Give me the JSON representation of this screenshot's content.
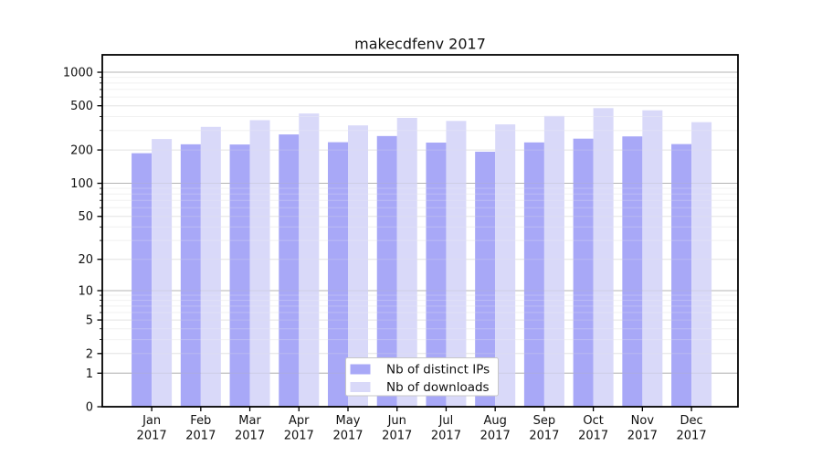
{
  "title": "makecdfenv 2017",
  "chart_data": {
    "type": "bar",
    "title": "makecdfenv 2017",
    "categories": [
      "Jan 2017",
      "Feb 2017",
      "Mar 2017",
      "Apr 2017",
      "May 2017",
      "Jun 2017",
      "Jul 2017",
      "Aug 2017",
      "Sep 2017",
      "Oct 2017",
      "Nov 2017",
      "Dec 2017"
    ],
    "series": [
      {
        "name": "Nb of distinct IPs",
        "color": "#a8a8f7",
        "values": [
          187,
          225,
          224,
          276,
          235,
          267,
          233,
          193,
          234,
          253,
          265,
          226
        ]
      },
      {
        "name": "Nb of downloads",
        "color": "#d9d9f9",
        "values": [
          251,
          323,
          371,
          426,
          333,
          389,
          365,
          340,
          405,
          476,
          455,
          356
        ]
      }
    ],
    "y_scale": "symlog",
    "y_ticks": [
      0,
      1,
      2,
      5,
      10,
      20,
      50,
      100,
      200,
      500,
      1000
    ],
    "y_max": 1433,
    "ylim": [
      0,
      1433
    ],
    "xlabel": "",
    "ylabel": "",
    "grid": true,
    "legend_position": "inside-bottom-center"
  },
  "colors": {
    "background": "#ffffff",
    "axis": "#000000",
    "grid_decade": "#b4b4b4",
    "grid_major": "#e4e4e4",
    "grid_minor": "#f2f2f2",
    "text": "#111111",
    "legend_border": "#c8c8c8",
    "legend_bg": "#ffffff"
  }
}
